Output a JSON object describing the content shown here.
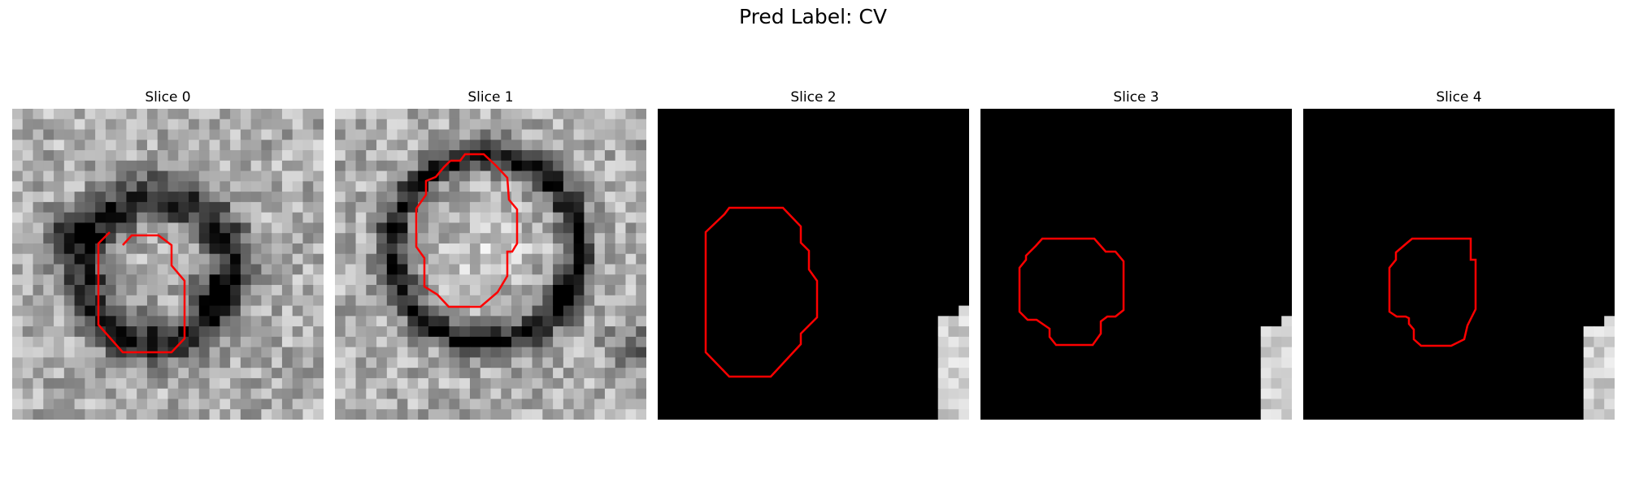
{
  "figure": {
    "title": "Pred Label: CV"
  },
  "panels": [
    {
      "title": "Slice 0",
      "background": "noise-light",
      "contour_color": "#ff0000"
    },
    {
      "title": "Slice 1",
      "background": "noise-light",
      "contour_color": "#ff0000"
    },
    {
      "title": "Slice 2",
      "background": "black-with-corner",
      "contour_color": "#ff0000"
    },
    {
      "title": "Slice 3",
      "background": "black-with-corner",
      "contour_color": "#ff0000"
    },
    {
      "title": "Slice 4",
      "background": "black-with-corner",
      "contour_color": "#ff0000"
    }
  ],
  "colors": {
    "contour": "#ff0000",
    "background_dark": "#000000"
  }
}
